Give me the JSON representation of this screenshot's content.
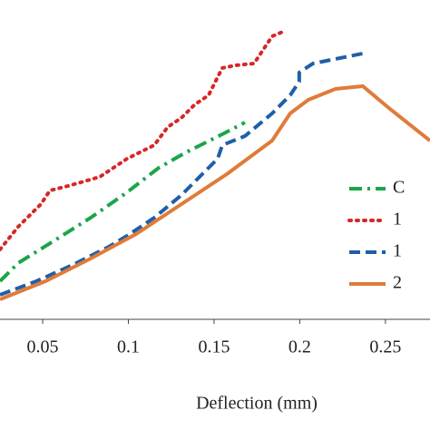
{
  "chart_data": {
    "type": "line",
    "x_label": "Deflection (mm)",
    "xlim": [
      0.0251,
      0.276
    ],
    "ylim": [
      0,
      352
    ],
    "xticks": [
      0.05,
      0.1,
      0.15,
      0.2,
      0.25
    ],
    "legend": "right",
    "series": [
      {
        "name": "C",
        "color": "#1aa64a",
        "dash": "dashdot",
        "x": [
          0.0251,
          0.0357,
          0.0595,
          0.078,
          0.0992,
          0.1177,
          0.1336,
          0.1548,
          0.168
        ],
        "values": [
          42,
          62,
          90,
          112,
          140,
          167,
          184,
          204,
          217
        ]
      },
      {
        "name": "1",
        "color": "#d62728",
        "dash": "dot",
        "x": [
          0.0251,
          0.0357,
          0.049,
          0.0542,
          0.0648,
          0.0833,
          0.0992,
          0.1151,
          0.123,
          0.1309,
          0.1389,
          0.1468,
          0.1521,
          0.1548,
          0.1627,
          0.1733,
          0.1786,
          0.1839,
          0.1902
        ],
        "values": [
          77,
          102,
          127,
          142,
          147,
          157,
          177,
          192,
          212,
          222,
          237,
          247,
          267,
          277,
          280,
          282,
          297,
          312,
          317
        ]
      },
      {
        "name": "1",
        "color": "#1f5fa8",
        "dash": "dash",
        "x": [
          0.0251,
          0.0463,
          0.0675,
          0.0886,
          0.0992,
          0.1151,
          0.131,
          0.1415,
          0.1521,
          0.1548,
          0.168,
          0.1839,
          0.1944,
          0.1997,
          0.1997,
          0.2077,
          0.2209,
          0.2394
        ],
        "values": [
          27,
          42,
          60,
          80,
          92,
          112,
          137,
          157,
          177,
          192,
          202,
          227,
          247,
          262,
          272,
          282,
          287,
          294
        ]
      },
      {
        "name": "2",
        "color": "#e07b39",
        "dash": "solid",
        "x": [
          0.0251,
          0.0516,
          0.078,
          0.1045,
          0.131,
          0.1574,
          0.1839,
          0.1944,
          0.205,
          0.2209,
          0.2368,
          0.2526,
          0.276
        ],
        "values": [
          22,
          42,
          67,
          94,
          127,
          160,
          197,
          227,
          242,
          254,
          257,
          232,
          197
        ]
      }
    ]
  }
}
